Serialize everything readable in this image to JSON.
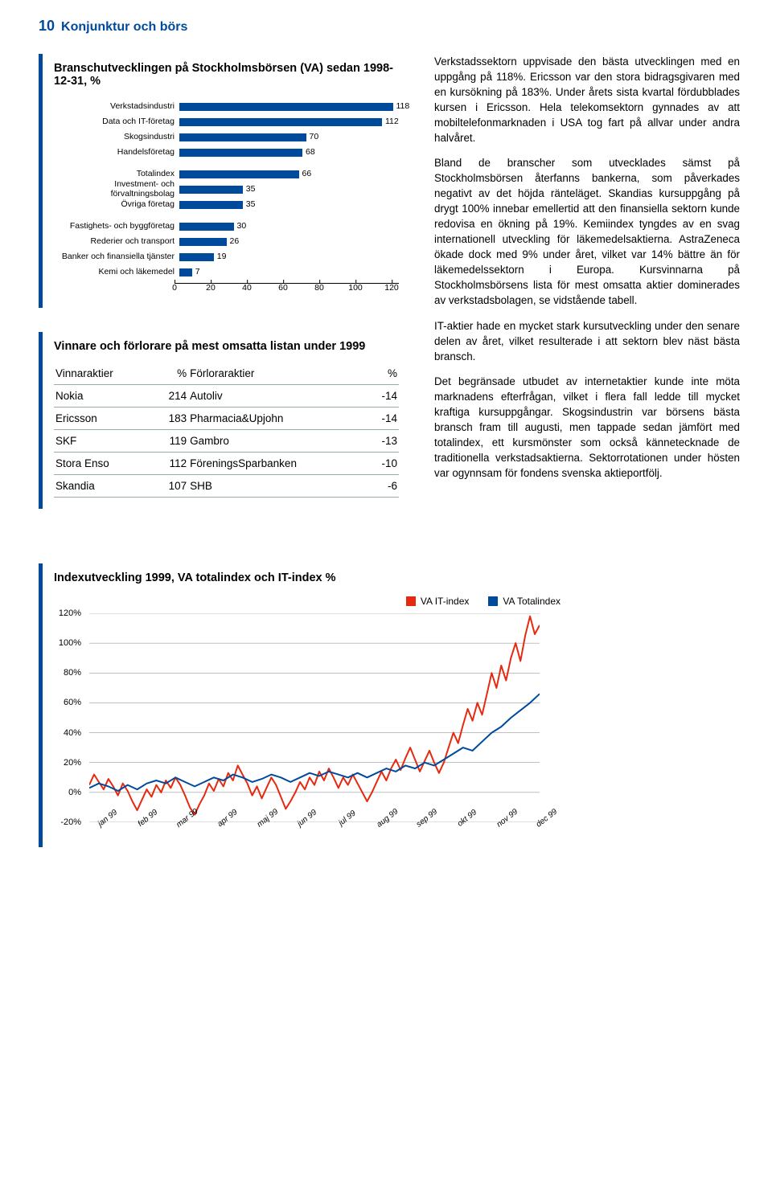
{
  "header": {
    "page_number": "10",
    "section": "Konjunktur och börs"
  },
  "bar_chart": {
    "title": "Branschutvecklingen på Stockholmsbörsen (VA) sedan 1998-12-31, %",
    "type": "bar",
    "xlim": [
      0,
      120
    ],
    "xtick_step": 20,
    "xticks": [
      "0",
      "20",
      "40",
      "60",
      "80",
      "100",
      "120"
    ],
    "bar_color": "#004a9c",
    "text_color": "#000000",
    "label_fontsize": 10.5,
    "value_fontsize": 10.5,
    "groups": [
      {
        "items": [
          {
            "label": "Verkstadsindustri",
            "value": 118
          },
          {
            "label": "Data och IT-företag",
            "value": 112
          },
          {
            "label": "Skogsindustri",
            "value": 70
          },
          {
            "label": "Handelsföretag",
            "value": 68
          }
        ]
      },
      {
        "items": [
          {
            "label": "Totalindex",
            "value": 66
          },
          {
            "label": "Investment- och förvaltningsbolag",
            "value": 35
          },
          {
            "label": "Övriga företag",
            "value": 35
          }
        ]
      },
      {
        "items": [
          {
            "label": "Fastighets- och byggföretag",
            "value": 30
          },
          {
            "label": "Rederier och transport",
            "value": 26
          },
          {
            "label": "Banker och finansiella tjänster",
            "value": 19
          },
          {
            "label": "Kemi och läkemedel",
            "value": 7
          }
        ]
      }
    ]
  },
  "winners_losers": {
    "title": "Vinnare och förlorare på mest omsatta listan under 1999",
    "columns": [
      "Vinnaraktier",
      "%",
      "Förloraraktier",
      "%"
    ],
    "rows": [
      [
        "Nokia",
        "214",
        "Autoliv",
        "-14"
      ],
      [
        "Ericsson",
        "183",
        "Pharmacia&Upjohn",
        "-14"
      ],
      [
        "SKF",
        "119",
        "Gambro",
        "-13"
      ],
      [
        "Stora Enso",
        "112",
        "FöreningsSparbanken",
        "-10"
      ],
      [
        "Skandia",
        "107",
        "SHB",
        "-6"
      ]
    ]
  },
  "body": {
    "p1": "Verkstadssektorn uppvisade den bästa utvecklingen med en uppgång på 118%. Ericsson var den stora bidragsgivaren med en kursökning på 183%. Under årets sista kvartal fördubblades kursen i Ericsson. Hela telekomsektorn gynnades av att mobiltelefonmarknaden i USA tog fart på allvar under andra halvåret.",
    "p2": "Bland de branscher som utvecklades sämst på Stockholmsbörsen återfanns bankerna, som påverkades negativt av det höjda ränteläget. Skandias kursuppgång på drygt 100% innebar emellertid att den finansiella sektorn kunde redovisa en ökning på 19%. Kemiindex tyngdes av en svag internationell utveckling för läkemedelsaktierna. AstraZeneca ökade dock med 9% under året, vilket var 14% bättre än för läkemedelssektorn i Europa. Kursvinnarna på Stockholmsbörsens lista för mest omsatta aktier dominerades av verkstadsbolagen, se vidstående tabell.",
    "p3": "IT-aktier hade en mycket stark kursutveckling under den senare delen av året, vilket resulterade i att sektorn blev näst bästa bransch.",
    "p4": "Det begränsade utbudet av internetaktier kunde inte möta marknadens efterfrågan, vilket i flera fall ledde till mycket kraftiga kursuppgångar. Skogsindustrin var börsens bästa bransch fram till augusti, men tappade sedan jämfört med totalindex, ett kursmönster som också kännetecknade de traditionella verkstadsaktierna. Sektorrotationen under hösten var ogynnsam för fondens svenska aktieportfölj."
  },
  "line_chart": {
    "title": "Indexutveckling 1999, VA totalindex och IT-index %",
    "type": "line",
    "ylim": [
      -20,
      120
    ],
    "ytick_step": 20,
    "yticks": [
      "120%",
      "100%",
      "80%",
      "60%",
      "40%",
      "20%",
      "0%",
      "-20%"
    ],
    "x_labels": [
      "jan 99",
      "feb 99",
      "mar 99",
      "apr 99",
      "maj 99",
      "jun 99",
      "jul 99",
      "aug 99",
      "sep 99",
      "okt 99",
      "nov 99",
      "dec 99"
    ],
    "background_color": "#ffffff",
    "grid_color": "#808285",
    "grid_width": 0.5,
    "line_width": 2,
    "series": [
      {
        "name": "VA IT-index",
        "color": "#e62a10",
        "points": [
          [
            0,
            5
          ],
          [
            4,
            12
          ],
          [
            8,
            7
          ],
          [
            12,
            2
          ],
          [
            16,
            9
          ],
          [
            20,
            4
          ],
          [
            24,
            -2
          ],
          [
            28,
            6
          ],
          [
            32,
            1
          ],
          [
            36,
            -6
          ],
          [
            40,
            -12
          ],
          [
            44,
            -5
          ],
          [
            48,
            2
          ],
          [
            52,
            -3
          ],
          [
            56,
            5
          ],
          [
            60,
            0
          ],
          [
            64,
            8
          ],
          [
            68,
            3
          ],
          [
            72,
            10
          ],
          [
            76,
            5
          ],
          [
            80,
            -2
          ],
          [
            84,
            -10
          ],
          [
            88,
            -15
          ],
          [
            92,
            -8
          ],
          [
            96,
            -2
          ],
          [
            100,
            6
          ],
          [
            104,
            1
          ],
          [
            108,
            9
          ],
          [
            112,
            4
          ],
          [
            116,
            13
          ],
          [
            120,
            8
          ],
          [
            124,
            18
          ],
          [
            128,
            12
          ],
          [
            132,
            6
          ],
          [
            136,
            -2
          ],
          [
            140,
            4
          ],
          [
            144,
            -4
          ],
          [
            148,
            3
          ],
          [
            152,
            10
          ],
          [
            156,
            5
          ],
          [
            160,
            -3
          ],
          [
            164,
            -11
          ],
          [
            168,
            -6
          ],
          [
            172,
            0
          ],
          [
            176,
            7
          ],
          [
            180,
            2
          ],
          [
            184,
            10
          ],
          [
            188,
            5
          ],
          [
            192,
            14
          ],
          [
            196,
            8
          ],
          [
            200,
            16
          ],
          [
            204,
            10
          ],
          [
            208,
            3
          ],
          [
            212,
            10
          ],
          [
            216,
            5
          ],
          [
            220,
            12
          ],
          [
            224,
            6
          ],
          [
            228,
            0
          ],
          [
            232,
            -6
          ],
          [
            236,
            0
          ],
          [
            240,
            7
          ],
          [
            244,
            14
          ],
          [
            248,
            8
          ],
          [
            252,
            16
          ],
          [
            256,
            22
          ],
          [
            260,
            15
          ],
          [
            264,
            23
          ],
          [
            268,
            30
          ],
          [
            272,
            22
          ],
          [
            276,
            14
          ],
          [
            280,
            21
          ],
          [
            284,
            28
          ],
          [
            288,
            20
          ],
          [
            292,
            13
          ],
          [
            296,
            20
          ],
          [
            300,
            30
          ],
          [
            304,
            40
          ],
          [
            308,
            33
          ],
          [
            312,
            45
          ],
          [
            316,
            56
          ],
          [
            320,
            48
          ],
          [
            324,
            60
          ],
          [
            328,
            52
          ],
          [
            332,
            66
          ],
          [
            336,
            80
          ],
          [
            340,
            70
          ],
          [
            344,
            85
          ],
          [
            348,
            75
          ],
          [
            352,
            90
          ],
          [
            356,
            100
          ],
          [
            360,
            88
          ],
          [
            364,
            105
          ],
          [
            368,
            118
          ],
          [
            372,
            106
          ],
          [
            376,
            112
          ]
        ]
      },
      {
        "name": "VA Totalindex",
        "color": "#004a9c",
        "points": [
          [
            0,
            3
          ],
          [
            8,
            6
          ],
          [
            16,
            4
          ],
          [
            24,
            1
          ],
          [
            32,
            5
          ],
          [
            40,
            2
          ],
          [
            48,
            6
          ],
          [
            56,
            8
          ],
          [
            64,
            6
          ],
          [
            72,
            10
          ],
          [
            80,
            7
          ],
          [
            88,
            4
          ],
          [
            96,
            7
          ],
          [
            104,
            10
          ],
          [
            112,
            8
          ],
          [
            120,
            12
          ],
          [
            128,
            10
          ],
          [
            136,
            7
          ],
          [
            144,
            9
          ],
          [
            152,
            12
          ],
          [
            160,
            10
          ],
          [
            168,
            7
          ],
          [
            176,
            10
          ],
          [
            184,
            13
          ],
          [
            192,
            11
          ],
          [
            200,
            14
          ],
          [
            208,
            12
          ],
          [
            216,
            10
          ],
          [
            224,
            13
          ],
          [
            232,
            10
          ],
          [
            240,
            13
          ],
          [
            248,
            16
          ],
          [
            256,
            14
          ],
          [
            264,
            18
          ],
          [
            272,
            16
          ],
          [
            280,
            20
          ],
          [
            288,
            18
          ],
          [
            296,
            22
          ],
          [
            304,
            26
          ],
          [
            312,
            30
          ],
          [
            320,
            28
          ],
          [
            328,
            34
          ],
          [
            336,
            40
          ],
          [
            344,
            44
          ],
          [
            352,
            50
          ],
          [
            360,
            55
          ],
          [
            368,
            60
          ],
          [
            376,
            66
          ]
        ]
      }
    ],
    "legend": {
      "items": [
        {
          "label": "VA IT-index",
          "color": "#e62a10"
        },
        {
          "label": "VA Totalindex",
          "color": "#004a9c"
        }
      ]
    }
  }
}
